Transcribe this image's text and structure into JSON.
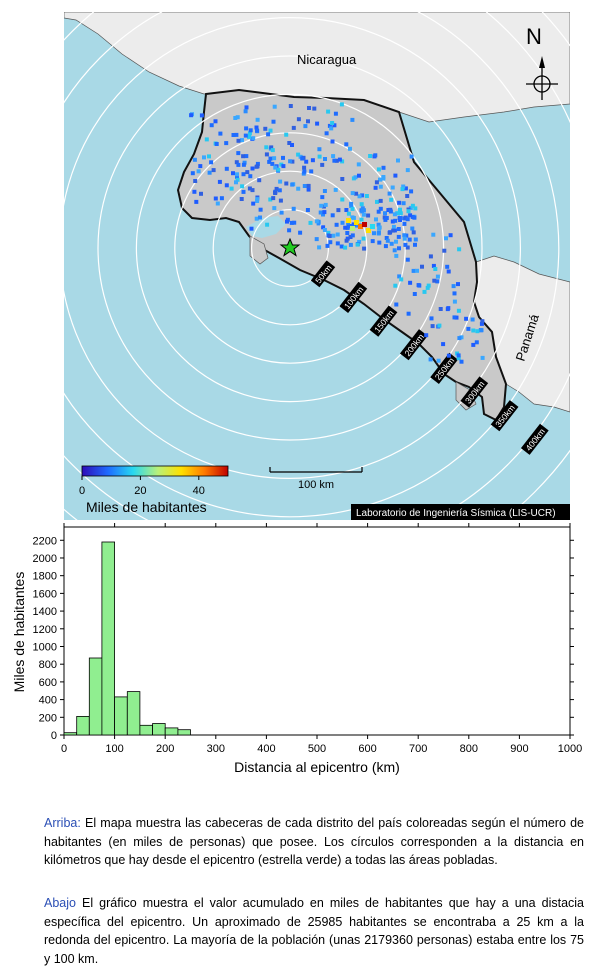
{
  "map": {
    "country_labels": [
      "Nicaragua",
      "Panamá"
    ],
    "north_label": "N",
    "ring_labels": [
      "50km",
      "100km",
      "150km",
      "200km",
      "250km",
      "300km",
      "350km",
      "400km"
    ],
    "scalebar_label": "100 km",
    "colorbar": {
      "title": "Miles de habitantes",
      "ticks": [
        "0",
        "20",
        "40"
      ],
      "min": 0,
      "max": 50
    },
    "credit": "Laboratorio de Ingeniería Sísmica (LIS-UCR)",
    "colors": {
      "sea": "#a9d9e6",
      "land": "#c9c9c9",
      "foreign": "#ececec",
      "epicenter": "#22cc22"
    }
  },
  "chart_data": {
    "type": "bar",
    "xlabel": "Distancia al epicentro (km)",
    "ylabel": "Miles de habitantes",
    "xlim": [
      0,
      1000
    ],
    "ylim": [
      0,
      2350
    ],
    "bin_width": 25,
    "bins_start": [
      0,
      25,
      50,
      75,
      100,
      125,
      150,
      175,
      200,
      225
    ],
    "values": [
      26,
      210,
      870,
      2180,
      430,
      490,
      110,
      130,
      80,
      60
    ],
    "x_ticks": [
      "0",
      "100",
      "200",
      "300",
      "400",
      "500",
      "600",
      "700",
      "800",
      "900",
      "1000"
    ],
    "y_ticks": [
      "0",
      "200",
      "400",
      "600",
      "800",
      "1000",
      "1200",
      "1400",
      "1600",
      "1800",
      "2000",
      "2200"
    ],
    "x_tick_values": [
      0,
      100,
      200,
      300,
      400,
      500,
      600,
      700,
      800,
      900,
      1000
    ],
    "y_tick_values": [
      0,
      200,
      400,
      600,
      800,
      1000,
      1200,
      1400,
      1600,
      1800,
      2000,
      2200
    ],
    "bar_color": "#90ee90"
  },
  "caption": {
    "top_label": "Arriba:",
    "top_text": " El mapa muestra las cabeceras de cada distrito del país coloreadas según el número de habitantes (en miles de personas) que posee. Los círculos corresponden a la distancia en kilómetros que hay desde el epicentro (estrella verde) a todas las áreas pobladas.",
    "bottom_label": "Abajo",
    "bottom_text": " El gráfico muestra el valor acumulado en miles de habitantes que hay a una distacia específica del epicentro. Un aproximado de 25985 habitantes se encontraba a 25 km a la redonda del epicentro. La mayoría de la población (unas 2179360 personas) estaba entre los 75 y 100 km."
  }
}
